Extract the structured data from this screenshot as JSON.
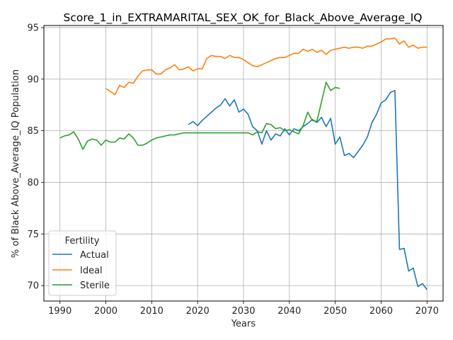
{
  "chart_data": {
    "type": "line",
    "title": "Score_1_in_EXTRAMARITAL_SEX_OK_for_Black_Above_Average_IQ",
    "xlabel": "Years",
    "ylabel": "% of Black Above_Average_IQ Population",
    "xlim": [
      1986.5,
      2073.5
    ],
    "ylim": [
      68.5,
      95.2
    ],
    "xticks": [
      1990,
      2000,
      2010,
      2020,
      2030,
      2040,
      2050,
      2060,
      2070
    ],
    "yticks": [
      70,
      75,
      80,
      85,
      90,
      95
    ],
    "grid": true,
    "legend": {
      "title": "Fertility",
      "position": "lower-left"
    },
    "series": [
      {
        "name": "Actual",
        "color": "#1f77b4",
        "x": [
          2018,
          2019,
          2020,
          2021,
          2022,
          2023,
          2024,
          2025,
          2026,
          2027,
          2028,
          2029,
          2030,
          2031,
          2032,
          2033,
          2034,
          2035,
          2036,
          2037,
          2038,
          2039,
          2040,
          2041,
          2042,
          2043,
          2044,
          2045,
          2046,
          2047,
          2048,
          2049,
          2050,
          2051,
          2052,
          2053,
          2054,
          2055,
          2056,
          2057,
          2058,
          2059,
          2060,
          2061,
          2062,
          2063,
          2064,
          2065,
          2066,
          2067,
          2068,
          2069,
          2070
        ],
        "values": [
          85.6,
          85.9,
          85.5,
          86.0,
          86.4,
          86.8,
          87.2,
          87.5,
          88.1,
          87.4,
          88.0,
          86.8,
          87.1,
          86.6,
          85.4,
          85.0,
          83.7,
          85.0,
          84.1,
          84.7,
          84.5,
          85.2,
          84.6,
          85.2,
          85.0,
          85.4,
          85.7,
          86.1,
          85.8,
          86.3,
          85.4,
          86.2,
          83.7,
          84.4,
          82.6,
          82.8,
          82.4,
          83.0,
          83.6,
          84.4,
          85.8,
          86.6,
          87.7,
          88.0,
          88.7,
          88.9,
          73.5,
          73.6,
          71.4,
          71.7,
          69.9,
          70.2,
          69.6
        ]
      },
      {
        "name": "Ideal",
        "color": "#ff7f0e",
        "x": [
          2000,
          2001,
          2002,
          2003,
          2004,
          2005,
          2006,
          2007,
          2008,
          2009,
          2010,
          2011,
          2012,
          2013,
          2014,
          2015,
          2016,
          2017,
          2018,
          2019,
          2020,
          2021,
          2022,
          2023,
          2024,
          2025,
          2026,
          2027,
          2028,
          2029,
          2030,
          2031,
          2032,
          2033,
          2034,
          2035,
          2036,
          2037,
          2038,
          2039,
          2040,
          2041,
          2042,
          2043,
          2044,
          2045,
          2046,
          2047,
          2048,
          2049,
          2050,
          2051,
          2052,
          2053,
          2054,
          2055,
          2056,
          2057,
          2058,
          2059,
          2060,
          2061,
          2062,
          2063,
          2064,
          2065,
          2066,
          2067,
          2068,
          2069,
          2070
        ],
        "values": [
          89.1,
          88.8,
          88.5,
          89.4,
          89.2,
          89.7,
          89.6,
          90.3,
          90.8,
          90.9,
          90.9,
          90.5,
          90.5,
          90.9,
          91.1,
          91.4,
          90.9,
          91.0,
          91.2,
          90.8,
          91.0,
          91.0,
          92.0,
          92.3,
          92.2,
          92.2,
          92.0,
          92.3,
          92.1,
          92.1,
          91.9,
          91.6,
          91.3,
          91.2,
          91.4,
          91.6,
          91.8,
          92.0,
          92.1,
          92.1,
          92.3,
          92.5,
          92.5,
          92.9,
          92.7,
          92.9,
          92.6,
          92.8,
          92.4,
          92.8,
          92.9,
          93.0,
          93.1,
          93.0,
          93.1,
          93.1,
          93.0,
          93.2,
          93.2,
          93.4,
          93.6,
          93.9,
          93.9,
          94.0,
          93.4,
          93.7,
          93.1,
          93.3,
          93.0,
          93.1,
          93.1
        ]
      },
      {
        "name": "Sterile",
        "color": "#2ca02c",
        "x": [
          1990,
          1991,
          1992,
          1993,
          1994,
          1995,
          1996,
          1997,
          1998,
          1999,
          2000,
          2001,
          2002,
          2003,
          2004,
          2005,
          2006,
          2007,
          2008,
          2009,
          2010,
          2011,
          2012,
          2013,
          2014,
          2015,
          2016,
          2017,
          2018,
          2019,
          2020,
          2021,
          2022,
          2023,
          2024,
          2025,
          2026,
          2027,
          2028,
          2029,
          2030,
          2031,
          2032,
          2033,
          2034,
          2035,
          2036,
          2037,
          2038,
          2039,
          2040,
          2041,
          2042,
          2043,
          2044,
          2045,
          2046,
          2047,
          2048,
          2049,
          2050,
          2051
        ],
        "values": [
          84.3,
          84.5,
          84.6,
          84.9,
          84.2,
          83.2,
          84.0,
          84.2,
          84.1,
          83.6,
          84.1,
          83.9,
          83.9,
          84.3,
          84.2,
          84.7,
          84.3,
          83.6,
          83.6,
          83.8,
          84.1,
          84.3,
          84.4,
          84.5,
          84.6,
          84.6,
          84.7,
          84.8,
          84.8,
          84.8,
          84.8,
          84.8,
          84.8,
          84.8,
          84.8,
          84.8,
          84.8,
          84.8,
          84.8,
          84.8,
          84.8,
          84.8,
          84.6,
          84.9,
          84.8,
          85.7,
          85.6,
          85.2,
          85.3,
          85.0,
          85.1,
          84.9,
          84.7,
          85.5,
          86.8,
          86.0,
          85.9,
          87.8,
          89.7,
          88.9,
          89.2,
          89.1
        ]
      }
    ]
  }
}
